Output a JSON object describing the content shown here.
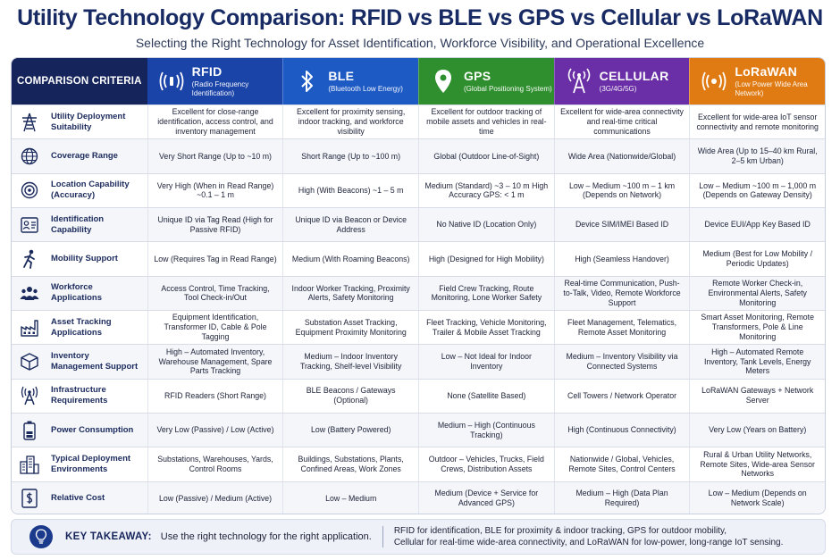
{
  "title": "Utility Technology Comparison: RFID vs BLE vs GPS vs Cellular vs LoRaWAN",
  "subtitle": "Selecting the Right Technology for Asset Identification, Workforce Visibility, and Operational Excellence",
  "header": {
    "criteria_label": "COMPARISON CRITERIA",
    "technologies": [
      {
        "name": "RFID",
        "sub": "(Radio Frequency Identification)",
        "color": "#1b44a8",
        "icon": "rfid-waves-icon"
      },
      {
        "name": "BLE",
        "sub": "(Bluetooth Low Energy)",
        "color": "#1e5ac4",
        "icon": "bluetooth-icon"
      },
      {
        "name": "GPS",
        "sub": "(Global Positioning System)",
        "color": "#2f8f2e",
        "icon": "location-pin-icon"
      },
      {
        "name": "CELLULAR",
        "sub": "(3G/4G/5G)",
        "color": "#6a2fa6",
        "icon": "cell-tower-icon"
      },
      {
        "name": "LoRaWAN",
        "sub": "(Low Power Wide Area Network)",
        "color": "#e07b14",
        "icon": "lora-waves-icon"
      }
    ]
  },
  "rows": [
    {
      "criterion": "Utility Deployment Suitability",
      "icon": "transmission-tower-icon",
      "values": [
        "Excellent for close-range identification, access control, and inventory management",
        "Excellent for proximity sensing, indoor tracking, and workforce visibility",
        "Excellent for outdoor tracking of mobile assets and vehicles in real-time",
        "Excellent for wide-area connectivity and real-time critical communications",
        "Excellent for wide-area IoT sensor connectivity and remote monitoring"
      ]
    },
    {
      "criterion": "Coverage Range",
      "icon": "globe-icon",
      "values": [
        "Very Short Range (Up to ~10 m)",
        "Short Range (Up to ~100 m)",
        "Global (Outdoor Line-of-Sight)",
        "Wide Area (Nationwide/Global)",
        "Wide Area (Up to 15–40 km Rural, 2–5 km Urban)"
      ]
    },
    {
      "criterion": "Location Capability (Accuracy)",
      "icon": "target-icon",
      "values": [
        "Very High (When in Read Range) ~0.1 – 1 m",
        "High (With Beacons) ~1 – 5 m",
        "Medium (Standard) ~3 – 10 m High Accuracy GPS: < 1 m",
        "Low – Medium ~100 m – 1 km (Depends on Network)",
        "Low – Medium ~100 m – 1,000 m (Depends on Gateway Density)"
      ]
    },
    {
      "criterion": "Identification Capability",
      "icon": "id-card-icon",
      "values": [
        "Unique ID via Tag Read (High for Passive RFID)",
        "Unique ID via Beacon or Device Address",
        "No Native ID (Location Only)",
        "Device SIM/IMEI Based ID",
        "Device EUI/App Key Based ID"
      ]
    },
    {
      "criterion": "Mobility Support",
      "icon": "running-person-icon",
      "values": [
        "Low (Requires Tag in Read Range)",
        "Medium (With Roaming Beacons)",
        "High (Designed for High Mobility)",
        "High (Seamless Handover)",
        "Medium (Best for Low Mobility / Periodic Updates)"
      ]
    },
    {
      "criterion": "Workforce Applications",
      "icon": "people-group-icon",
      "values": [
        "Access Control, Time Tracking, Tool Check-in/Out",
        "Indoor Worker Tracking, Proximity Alerts, Safety Monitoring",
        "Field Crew Tracking, Route Monitoring, Lone Worker Safety",
        "Real-time Communication, Push-to-Talk, Video, Remote Workforce Support",
        "Remote Worker Check-in, Environmental Alerts, Safety Monitoring"
      ]
    },
    {
      "criterion": "Asset Tracking Applications",
      "icon": "factory-icon",
      "values": [
        "Equipment Identification, Transformer ID, Cable & Pole Tagging",
        "Substation Asset Tracking, Equipment Proximity Monitoring",
        "Fleet Tracking, Vehicle Monitoring, Trailer & Mobile Asset Tracking",
        "Fleet Management, Telematics, Remote Asset Monitoring",
        "Smart Asset Monitoring, Remote Transformers, Pole & Line Monitoring"
      ]
    },
    {
      "criterion": "Inventory Management Support",
      "icon": "box-icon",
      "values": [
        "High – Automated Inventory, Warehouse Management, Spare Parts Tracking",
        "Medium – Indoor Inventory Tracking, Shelf-level Visibility",
        "Low – Not Ideal for Indoor Inventory",
        "Medium – Inventory Visibility via Connected Systems",
        "High – Automated Remote Inventory, Tank Levels, Energy Meters"
      ]
    },
    {
      "criterion": "Infrastructure Requirements",
      "icon": "antenna-icon",
      "values": [
        "RFID Readers (Short Range)",
        "BLE Beacons / Gateways (Optional)",
        "None (Satellite Based)",
        "Cell Towers / Network Operator",
        "LoRaWAN Gateways + Network Server"
      ]
    },
    {
      "criterion": "Power Consumption",
      "icon": "battery-icon",
      "values": [
        "Very Low (Passive) / Low (Active)",
        "Low (Battery Powered)",
        "Medium – High (Continuous Tracking)",
        "High (Continuous Connectivity)",
        "Very Low (Years on Battery)"
      ]
    },
    {
      "criterion": "Typical Deployment Environments",
      "icon": "buildings-icon",
      "values": [
        "Substations, Warehouses, Yards, Control Rooms",
        "Buildings, Substations, Plants, Confined Areas, Work Zones",
        "Outdoor – Vehicles, Trucks, Field Crews, Distribution Assets",
        "Nationwide / Global, Vehicles, Remote Sites, Control Centers",
        "Rural & Urban Utility Networks, Remote Sites, Wide-area Sensor Networks"
      ]
    },
    {
      "criterion": "Relative Cost",
      "icon": "dollar-document-icon",
      "values": [
        "Low (Passive) / Medium (Active)",
        "Low – Medium",
        "Medium (Device + Service for Advanced GPS)",
        "Medium – High (Data Plan Required)",
        "Low – Medium (Depends on Network Scale)"
      ]
    }
  ],
  "takeaway": {
    "label": "KEY TAKEAWAY:",
    "text": "Use the right technology for the right application.",
    "detail_line1": "RFID for identification, BLE for proximity & indoor tracking, GPS for outdoor mobility,",
    "detail_line2": "Cellular for real-time wide-area connectivity, and LoRaWAN for low-power, long-range IoT sensing.",
    "icon": "lightbulb-icon"
  },
  "colors": {
    "navy": "#15255b",
    "accent_text": "#172a63"
  }
}
